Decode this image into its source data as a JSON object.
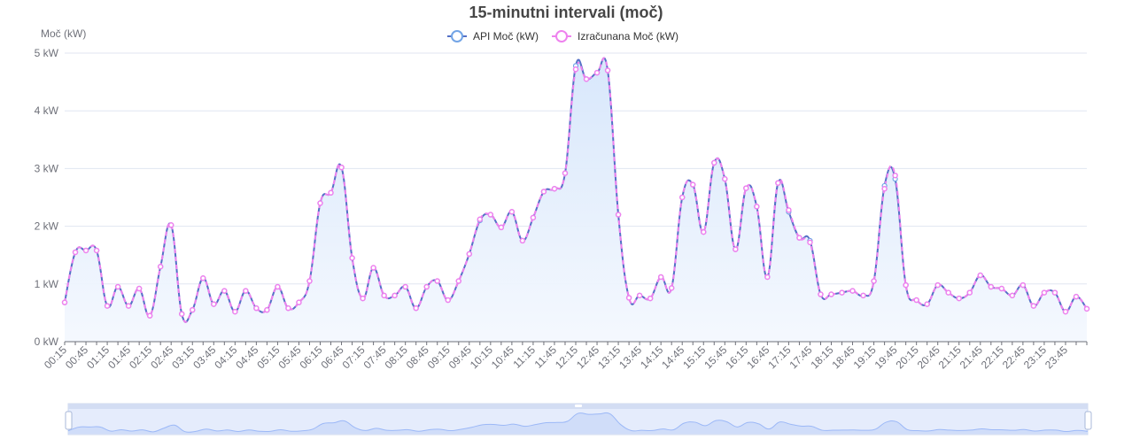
{
  "chart_data": {
    "type": "line",
    "title": "15-minutni intervali (moč)",
    "ylabel": "Moč (kW)",
    "ylim": [
      0,
      5
    ],
    "y_ticks": [
      "0 kW",
      "1 kW",
      "2 kW",
      "3 kW",
      "4 kW",
      "5 kW"
    ],
    "grid": true,
    "legend_position": "top-center",
    "colors": {
      "api": "#5470c6",
      "api_marker_border": "#73a5e6",
      "calc": "#ee82ee",
      "area": "#dbe9fb",
      "zoom_fill": "#dfe8fb",
      "zoom_line": "#8fb0f7"
    },
    "x_labels": [
      "00:15",
      "00:45",
      "01:15",
      "01:45",
      "02:15",
      "02:45",
      "03:15",
      "03:45",
      "04:15",
      "04:45",
      "05:15",
      "05:45",
      "06:15",
      "06:45",
      "07:15",
      "07:45",
      "08:15",
      "08:45",
      "09:15",
      "09:45",
      "10:15",
      "10:45",
      "11:15",
      "11:45",
      "12:15",
      "12:45",
      "13:15",
      "13:45",
      "14:15",
      "14:45",
      "15:15",
      "15:45",
      "16:15",
      "16:45",
      "17:15",
      "17:45",
      "18:15",
      "18:45",
      "19:15",
      "19:45",
      "20:15",
      "20:45",
      "21:15",
      "21:45",
      "22:15",
      "22:45",
      "23:15",
      "23:45"
    ],
    "series": [
      {
        "name": "API Moč (kW)",
        "values": [
          0.68,
          1.55,
          1.58,
          1.58,
          0.62,
          0.95,
          0.62,
          0.92,
          0.45,
          1.3,
          2.02,
          0.48,
          0.55,
          1.1,
          0.65,
          0.88,
          0.52,
          0.88,
          0.58,
          0.55,
          0.95,
          0.58,
          0.68,
          1.05,
          2.4,
          2.58,
          3.02,
          1.45,
          0.75,
          1.28,
          0.8,
          0.8,
          0.95,
          0.58,
          0.95,
          1.05,
          0.72,
          1.05,
          1.52,
          2.1,
          2.2,
          1.98,
          2.25,
          1.75,
          2.15,
          2.6,
          2.65,
          2.92,
          4.78,
          4.55,
          4.66,
          4.7,
          2.2,
          0.76,
          0.8,
          0.75,
          1.12,
          0.93,
          2.5,
          2.72,
          1.9,
          3.1,
          2.82,
          1.6,
          2.66,
          2.34,
          1.12,
          2.75,
          2.25,
          1.8,
          1.75,
          0.82,
          0.82,
          0.85,
          0.88,
          0.8,
          1.05,
          2.7,
          2.82,
          0.98,
          0.72,
          0.65,
          0.98,
          0.85,
          0.75,
          0.85,
          1.15,
          0.95,
          0.92,
          0.8,
          0.98,
          0.62,
          0.85,
          0.85,
          0.52,
          0.78,
          0.57
        ]
      },
      {
        "name": "Izračunana Moč (kW)",
        "values": [
          0.68,
          1.55,
          1.58,
          1.58,
          0.62,
          0.95,
          0.62,
          0.92,
          0.45,
          1.3,
          2.02,
          0.48,
          0.55,
          1.1,
          0.65,
          0.88,
          0.52,
          0.88,
          0.58,
          0.55,
          0.95,
          0.58,
          0.68,
          1.05,
          2.4,
          2.58,
          3.02,
          1.45,
          0.75,
          1.28,
          0.8,
          0.8,
          0.95,
          0.58,
          0.95,
          1.05,
          0.72,
          1.05,
          1.52,
          2.12,
          2.2,
          1.98,
          2.25,
          1.75,
          2.15,
          2.6,
          2.65,
          2.92,
          4.72,
          4.55,
          4.66,
          4.7,
          2.2,
          0.76,
          0.8,
          0.75,
          1.12,
          0.93,
          2.5,
          2.72,
          1.9,
          3.1,
          2.82,
          1.6,
          2.66,
          2.34,
          1.12,
          2.75,
          2.28,
          1.8,
          1.72,
          0.82,
          0.82,
          0.85,
          0.88,
          0.8,
          1.05,
          2.65,
          2.88,
          0.98,
          0.72,
          0.65,
          0.98,
          0.85,
          0.75,
          0.85,
          1.15,
          0.95,
          0.92,
          0.8,
          0.98,
          0.62,
          0.85,
          0.85,
          0.52,
          0.78,
          0.57
        ]
      }
    ]
  }
}
